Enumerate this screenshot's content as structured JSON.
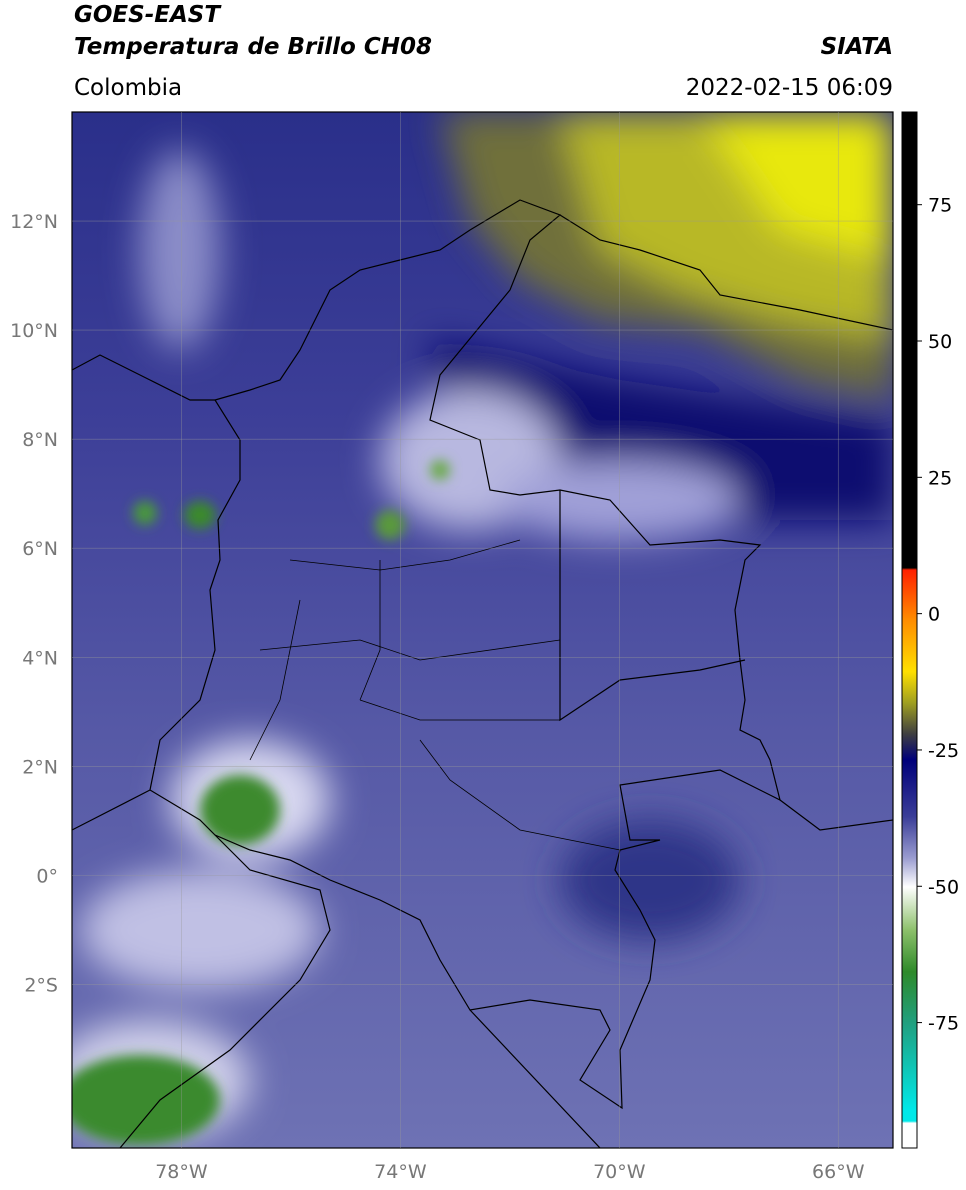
{
  "header": {
    "satellite": "GOES-EAST",
    "product": "Temperatura de Brillo CH08",
    "source": "SIATA",
    "region": "Colombia",
    "datetime": "2022-02-15 06:09"
  },
  "map": {
    "xlim": [
      -80,
      -65
    ],
    "ylim": [
      -5,
      14
    ],
    "grid": true,
    "xticks": [
      {
        "value": -78,
        "label": "78°W"
      },
      {
        "value": -74,
        "label": "74°W"
      },
      {
        "value": -70,
        "label": "70°W"
      },
      {
        "value": -66,
        "label": "66°W"
      }
    ],
    "yticks": [
      {
        "value": -2,
        "label": "2°S"
      },
      {
        "value": 0,
        "label": "0°"
      },
      {
        "value": 2,
        "label": "2°N"
      },
      {
        "value": 4,
        "label": "4°N"
      },
      {
        "value": 6,
        "label": "6°N"
      },
      {
        "value": 8,
        "label": "8°N"
      },
      {
        "value": 10,
        "label": "10°N"
      },
      {
        "value": 12,
        "label": "12°N"
      }
    ]
  },
  "colorbar": {
    "lim": [
      -98,
      92
    ],
    "ticks": [
      -75,
      -50,
      -25,
      0,
      25,
      50,
      75
    ]
  }
}
